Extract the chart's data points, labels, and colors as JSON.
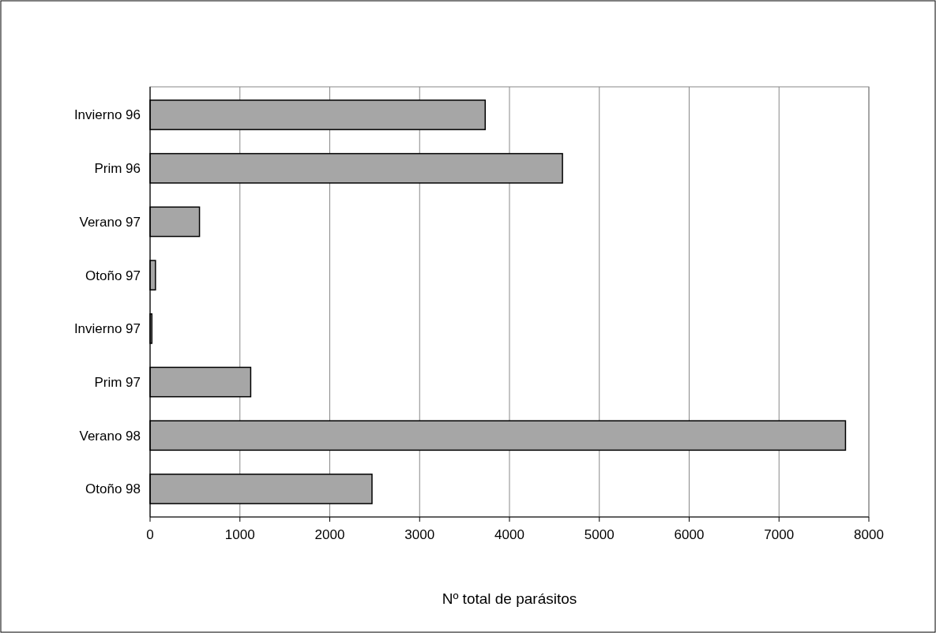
{
  "chart_data": {
    "type": "bar",
    "orientation": "horizontal",
    "xlabel": "Nº total de parásitos",
    "categories": [
      "Invierno 96",
      "Prim 96",
      "Verano 97",
      "Otoño 97",
      "Invierno 97",
      "Prim 97",
      "Verano 98",
      "Otoño 98"
    ],
    "values": [
      3730,
      4590,
      550,
      60,
      20,
      1120,
      7740,
      2470
    ],
    "color": "#a6a6a6",
    "xlim": [
      0,
      8000
    ],
    "xticks": [
      0,
      1000,
      2000,
      3000,
      4000,
      5000,
      6000,
      7000,
      8000
    ],
    "grid": "x"
  }
}
